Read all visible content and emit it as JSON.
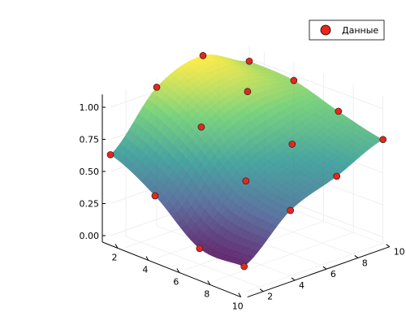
{
  "chart_data": {
    "type": "surface3d",
    "x_ticks": [
      "2",
      "4",
      "6",
      "8",
      "10"
    ],
    "y_ticks": [
      "2",
      "4",
      "6",
      "8",
      "10"
    ],
    "z_ticks": [
      "0.00",
      "0.25",
      "0.50",
      "0.75",
      "1.00"
    ],
    "xlim": [
      1,
      10
    ],
    "ylim": [
      1,
      10
    ],
    "zlim": [
      -0.05,
      1.1
    ],
    "grid": true,
    "legend": {
      "position": "top-right",
      "entries": [
        "Данные"
      ]
    },
    "series": [
      {
        "name": "Данные",
        "type": "scatter",
        "color": "#e8261b",
        "points": [
          {
            "x": 1,
            "y": 1,
            "z": 0.63
          },
          {
            "x": 1,
            "y": 4,
            "z": 1.03
          },
          {
            "x": 1,
            "y": 7,
            "z": 1.15
          },
          {
            "x": 1,
            "y": 10,
            "z": 0.98
          },
          {
            "x": 4,
            "y": 1,
            "z": 0.44
          },
          {
            "x": 4,
            "y": 4,
            "z": 0.85
          },
          {
            "x": 4,
            "y": 7,
            "z": 1.0
          },
          {
            "x": 4,
            "y": 10,
            "z": 0.96
          },
          {
            "x": 7,
            "y": 1,
            "z": 0.16
          },
          {
            "x": 7,
            "y": 4,
            "z": 0.56
          },
          {
            "x": 7,
            "y": 7,
            "z": 0.72
          },
          {
            "x": 7,
            "y": 10,
            "z": 0.85
          },
          {
            "x": 10,
            "y": 1,
            "z": 0.15
          },
          {
            "x": 10,
            "y": 4,
            "z": 0.46
          },
          {
            "x": 10,
            "y": 7,
            "z": 0.6
          },
          {
            "x": 10,
            "y": 10,
            "z": 0.76
          }
        ]
      },
      {
        "type": "surface",
        "colormap": [
          "#440154",
          "#3b528b",
          "#21918c",
          "#5ec962",
          "#fde725"
        ]
      }
    ]
  }
}
